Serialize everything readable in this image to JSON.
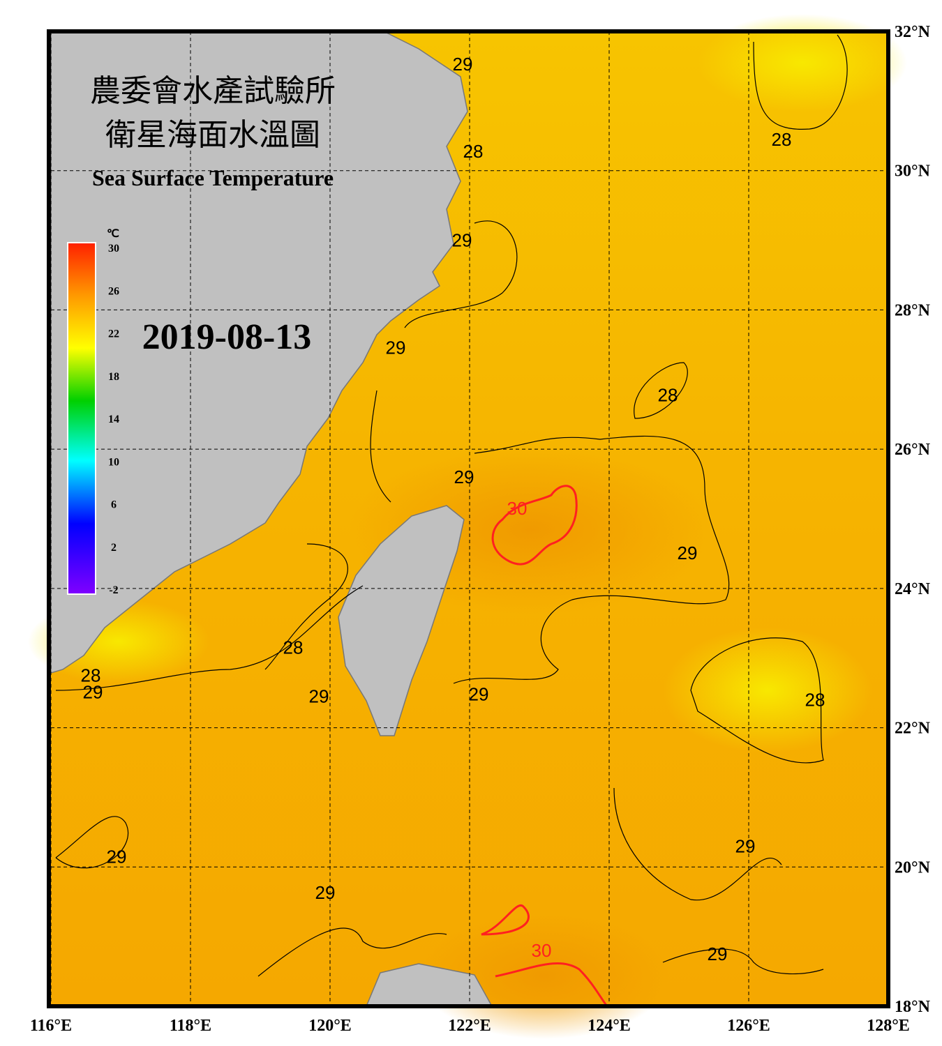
{
  "header": {
    "title_zh_1": "農委會水產試驗所",
    "title_zh_2": "衛星海面水溫圖",
    "title_en": "Sea Surface Temperature",
    "date": "2019-08-13"
  },
  "colorbar": {
    "unit": "℃",
    "lim": [
      -2,
      30
    ],
    "ticks": [
      30,
      26,
      22,
      18,
      14,
      10,
      6,
      2,
      -2
    ]
  },
  "map": {
    "xlim": [
      116,
      128
    ],
    "ylim": [
      18,
      32
    ],
    "grid": true,
    "xticks": [
      {
        "value": 116,
        "label": "116°E"
      },
      {
        "value": 118,
        "label": "118°E"
      },
      {
        "value": 120,
        "label": "120°E"
      },
      {
        "value": 122,
        "label": "122°E"
      },
      {
        "value": 124,
        "label": "124°E"
      },
      {
        "value": 126,
        "label": "126°E"
      },
      {
        "value": 128,
        "label": "128°E"
      }
    ],
    "yticks": [
      {
        "value": 18,
        "label": "18°N"
      },
      {
        "value": 20,
        "label": "20°N"
      },
      {
        "value": 22,
        "label": "22°N"
      },
      {
        "value": 24,
        "label": "24°N"
      },
      {
        "value": 26,
        "label": "26°N"
      },
      {
        "value": 28,
        "label": "28°N"
      },
      {
        "value": 30,
        "label": "30°N"
      },
      {
        "value": 32,
        "label": "32°N"
      }
    ],
    "contour_colors": {
      "28": "#000000",
      "29": "#000000",
      "30": "#ff2020"
    },
    "contour_labels": [
      {
        "value": 29,
        "lon": 121.9,
        "lat": 31.53
      },
      {
        "value": 28,
        "lon": 122.05,
        "lat": 30.28
      },
      {
        "value": 29,
        "lon": 121.89,
        "lat": 29.0
      },
      {
        "value": 29,
        "lon": 120.94,
        "lat": 27.46
      },
      {
        "value": 28,
        "lon": 126.47,
        "lat": 30.45
      },
      {
        "value": 28,
        "lon": 124.84,
        "lat": 26.78
      },
      {
        "value": 29,
        "lon": 121.92,
        "lat": 25.6
      },
      {
        "value": 30,
        "lon": 122.68,
        "lat": 25.15
      },
      {
        "value": 29,
        "lon": 125.12,
        "lat": 24.51
      },
      {
        "value": 28,
        "lon": 119.47,
        "lat": 23.15
      },
      {
        "value": 28,
        "lon": 116.57,
        "lat": 22.75
      },
      {
        "value": 29,
        "lon": 116.6,
        "lat": 22.51
      },
      {
        "value": 29,
        "lon": 119.84,
        "lat": 22.45
      },
      {
        "value": 29,
        "lon": 122.13,
        "lat": 22.48
      },
      {
        "value": 28,
        "lon": 126.95,
        "lat": 22.4
      },
      {
        "value": 29,
        "lon": 125.95,
        "lat": 20.3
      },
      {
        "value": 29,
        "lon": 116.94,
        "lat": 20.15
      },
      {
        "value": 29,
        "lon": 119.93,
        "lat": 19.63
      },
      {
        "value": 30,
        "lon": 123.03,
        "lat": 18.8
      },
      {
        "value": 29,
        "lon": 125.55,
        "lat": 18.75
      }
    ]
  }
}
